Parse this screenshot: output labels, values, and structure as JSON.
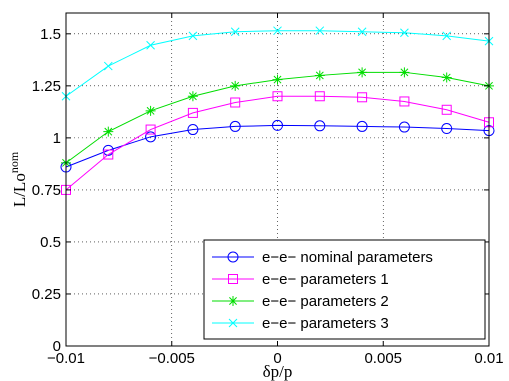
{
  "chart_data": {
    "type": "line",
    "xlabel": "δp/p",
    "ylabel_main": "L/Lo",
    "ylabel_sup": "nom",
    "xlim": [
      -0.01,
      0.01
    ],
    "ylim": [
      0,
      1.6
    ],
    "xticks": [
      -0.01,
      -0.005,
      0,
      0.005,
      0.01
    ],
    "xtick_labels": [
      "−0.01",
      "−0.005",
      "0",
      "0.005",
      "0.01"
    ],
    "yticks": [
      0,
      0.25,
      0.5,
      0.75,
      1,
      1.25,
      1.5
    ],
    "ytick_labels": [
      "0",
      "0.25",
      "0.5",
      "0.75",
      "1",
      "1.25",
      "1.5"
    ],
    "grid": true,
    "legend_position": "bottom-right",
    "x": [
      -0.01,
      -0.008,
      -0.006,
      -0.004,
      -0.002,
      0,
      0.002,
      0.004,
      0.006,
      0.008,
      0.01
    ],
    "series": [
      {
        "name": "e−e− nominal parameters",
        "color": "#0000ff",
        "marker": "circle",
        "values": [
          0.86,
          0.94,
          1.005,
          1.04,
          1.055,
          1.06,
          1.058,
          1.055,
          1.052,
          1.045,
          1.035
        ]
      },
      {
        "name": "e−e− parameters 1",
        "color": "#ff00ff",
        "marker": "square",
        "values": [
          0.75,
          0.92,
          1.04,
          1.12,
          1.17,
          1.2,
          1.2,
          1.195,
          1.175,
          1.135,
          1.075
        ]
      },
      {
        "name": "e−e− parameters 2",
        "color": "#00dd00",
        "marker": "star",
        "values": [
          0.88,
          1.03,
          1.13,
          1.2,
          1.25,
          1.28,
          1.3,
          1.315,
          1.315,
          1.29,
          1.25
        ]
      },
      {
        "name": "e−e− parameters 3",
        "color": "#00ffff",
        "marker": "x",
        "values": [
          1.2,
          1.345,
          1.445,
          1.49,
          1.51,
          1.515,
          1.515,
          1.51,
          1.505,
          1.49,
          1.465
        ]
      }
    ]
  }
}
